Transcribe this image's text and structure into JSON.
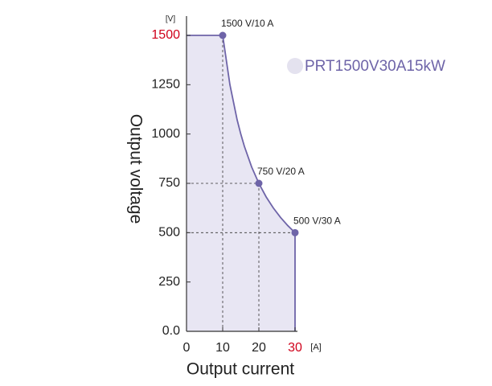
{
  "chart_data": {
    "type": "line",
    "x_label": "Output current",
    "y_label": "Output voltage",
    "x_unit": "[A]",
    "y_unit": "[V]",
    "xlim": [
      0,
      30
    ],
    "ylim": [
      0,
      1500
    ],
    "xticks": [
      0,
      10,
      20,
      30
    ],
    "yticks": [
      {
        "value": 0,
        "label": "0.0"
      },
      250,
      500,
      750,
      1000,
      1250,
      1500
    ],
    "highlight_color": "#d0021b",
    "series": [
      {
        "name": "PRT1500V30A15kW",
        "color": "#6e64a8",
        "fill": "#e8e6f3",
        "x": [
          0,
          10,
          12,
          14,
          15,
          16,
          18,
          20,
          22,
          24,
          26,
          28,
          30,
          30
        ],
        "values": [
          1500,
          1500,
          1250,
          1071.4,
          1000,
          937.5,
          833.3,
          750,
          681.8,
          625,
          576.9,
          535.7,
          500,
          0
        ]
      }
    ],
    "points": [
      {
        "x": 10,
        "y": 1500,
        "label": "1500 V/10 A"
      },
      {
        "x": 20,
        "y": 750,
        "label": "750 V/20 A"
      },
      {
        "x": 30,
        "y": 500,
        "label": "500 V/30 A"
      }
    ],
    "legend_marker_color": "#e4e2ef"
  }
}
